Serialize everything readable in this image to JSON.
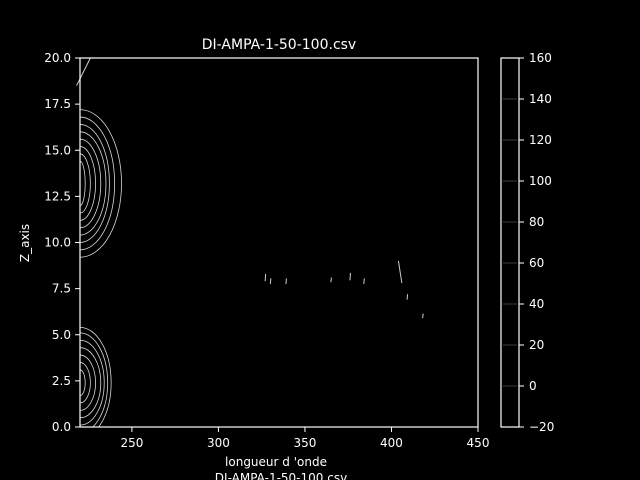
{
  "window": {
    "title": "DI-AMPA-1-50-100.csv"
  },
  "chart_data": {
    "type": "heatmap",
    "style": "contour",
    "title": "DI-AMPA-1-50-100.csv",
    "xlabel": "longueur d 'onde",
    "xlabel2": "DI-AMPA-1-50-100.csv",
    "ylabel": "Z_axis",
    "xlim": [
      220,
      450
    ],
    "ylim": [
      0,
      20
    ],
    "xticks": [
      250,
      300,
      350,
      400,
      450
    ],
    "xtick_labels": [
      "250",
      "300",
      "350",
      "400",
      "450"
    ],
    "yticks": [
      0,
      2.5,
      5,
      7.5,
      10,
      12.5,
      15,
      17.5,
      20
    ],
    "ytick_labels": [
      "0.0",
      "2.5",
      "5.0",
      "7.5",
      "10.0",
      "12.5",
      "15.0",
      "17.5",
      "20.0"
    ],
    "colorbar": {
      "range": [
        -20,
        160
      ],
      "ticks": [
        -20,
        0,
        20,
        40,
        60,
        80,
        100,
        120,
        140,
        160
      ],
      "tick_labels": [
        "−20",
        "0",
        "20",
        "40",
        "60",
        "80",
        "100",
        "120",
        "140",
        "160"
      ]
    },
    "contour_groups": [
      {
        "name": "upper-peak",
        "center": [
          220,
          13.2
        ],
        "radius_x": [
          3,
          6,
          9,
          12,
          15,
          17,
          20,
          24
        ],
        "radius_y": [
          1.2,
          1.6,
          2,
          2.4,
          2.8,
          3.2,
          3.6,
          4
        ]
      },
      {
        "name": "lower-peak",
        "center": [
          220,
          2.4
        ],
        "radius_x": [
          3,
          6,
          9,
          12,
          14,
          16,
          18
        ],
        "radius_y": [
          0.7,
          1.1,
          1.5,
          1.9,
          2.3,
          2.7,
          3
        ]
      }
    ],
    "noise_segments": [
      {
        "x": [
          218,
          226
        ],
        "y": [
          18.5,
          20
        ]
      },
      {
        "x": [
          327,
          327.3
        ],
        "y": [
          7.9,
          8.3
        ]
      },
      {
        "x": [
          330,
          330.3
        ],
        "y": [
          7.75,
          8.05
        ]
      },
      {
        "x": [
          339,
          339.3
        ],
        "y": [
          7.75,
          8.05
        ]
      },
      {
        "x": [
          365,
          365.3
        ],
        "y": [
          7.85,
          8.1
        ]
      },
      {
        "x": [
          376,
          376.3
        ],
        "y": [
          7.95,
          8.35
        ]
      },
      {
        "x": [
          384,
          384.3
        ],
        "y": [
          7.75,
          8.05
        ]
      },
      {
        "x": [
          404,
          406
        ],
        "y": [
          9.0,
          7.8
        ]
      },
      {
        "x": [
          409,
          409.3
        ],
        "y": [
          6.9,
          7.2
        ]
      },
      {
        "x": [
          418,
          418.3
        ],
        "y": [
          5.9,
          6.15
        ]
      }
    ]
  }
}
